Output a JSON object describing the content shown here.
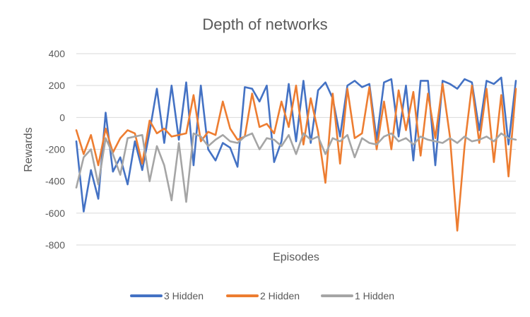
{
  "chart_data": {
    "type": "line",
    "title": "Depth of networks",
    "xlabel": "Episodes",
    "ylabel": "Rewards",
    "ylim": [
      -800,
      400
    ],
    "y_ticks": [
      400,
      200,
      0,
      -200,
      -400,
      -600,
      -800
    ],
    "y_tick_labels": [
      "400",
      "200",
      "0",
      "-200",
      "-400",
      "-600",
      "-800"
    ],
    "grid": "horizontal",
    "legend_position": "bottom",
    "x": [
      0,
      10,
      20,
      30,
      40,
      50,
      60,
      70,
      80,
      90,
      100,
      110,
      120,
      130,
      140,
      150,
      160,
      170,
      180,
      190,
      200,
      210,
      220,
      230,
      240,
      250,
      260,
      270,
      280,
      290,
      300,
      310,
      320,
      330,
      340,
      350,
      360,
      370,
      380,
      390,
      400,
      410,
      420,
      430,
      440,
      450,
      460,
      470,
      480,
      490,
      500,
      510,
      520,
      530,
      540,
      550,
      560,
      570,
      580,
      590,
      600
    ],
    "series": [
      {
        "name": "3 Hidden",
        "color": "#4472c4",
        "values": [
          -150,
          -590,
          -330,
          -510,
          30,
          -340,
          -250,
          -420,
          -150,
          -330,
          -90,
          180,
          -160,
          200,
          -140,
          220,
          -300,
          200,
          -200,
          -270,
          -160,
          -190,
          -310,
          190,
          180,
          100,
          200,
          -280,
          -150,
          210,
          -150,
          230,
          -160,
          170,
          220,
          120,
          -120,
          200,
          230,
          190,
          210,
          -140,
          220,
          240,
          -120,
          200,
          -270,
          230,
          230,
          -300,
          230,
          210,
          180,
          240,
          220,
          -80,
          230,
          210,
          250,
          -170,
          230
        ]
      },
      {
        "name": "2 Hidden",
        "color": "#ed7d31",
        "values": [
          -80,
          -230,
          -110,
          -300,
          -70,
          -220,
          -130,
          -80,
          -100,
          -290,
          -20,
          -100,
          -70,
          -120,
          -110,
          -100,
          140,
          -150,
          -90,
          -110,
          100,
          -70,
          -140,
          -120,
          150,
          -60,
          -40,
          -100,
          100,
          -60,
          200,
          -170,
          120,
          -90,
          -410,
          150,
          -290,
          180,
          -130,
          -100,
          190,
          -200,
          100,
          -200,
          170,
          -80,
          160,
          -240,
          150,
          -130,
          210,
          -120,
          -710,
          -180,
          200,
          -160,
          180,
          -280,
          140,
          -370,
          180
        ]
      },
      {
        "name": "1 Hidden",
        "color": "#a5a5a5",
        "values": [
          -440,
          -250,
          -200,
          -420,
          -130,
          -230,
          -360,
          -130,
          -120,
          -110,
          -400,
          -180,
          -300,
          -520,
          -160,
          -530,
          -100,
          -120,
          -180,
          -140,
          -110,
          -150,
          -160,
          -120,
          -100,
          -200,
          -130,
          -140,
          -180,
          -110,
          -230,
          -100,
          -140,
          -120,
          -230,
          -130,
          -150,
          -110,
          -250,
          -130,
          -160,
          -170,
          -120,
          -100,
          -150,
          -130,
          -170,
          -120,
          -140,
          -150,
          -160,
          -130,
          -160,
          -120,
          -150,
          -140,
          -120,
          -150,
          -100,
          -130,
          -140
        ]
      }
    ]
  }
}
